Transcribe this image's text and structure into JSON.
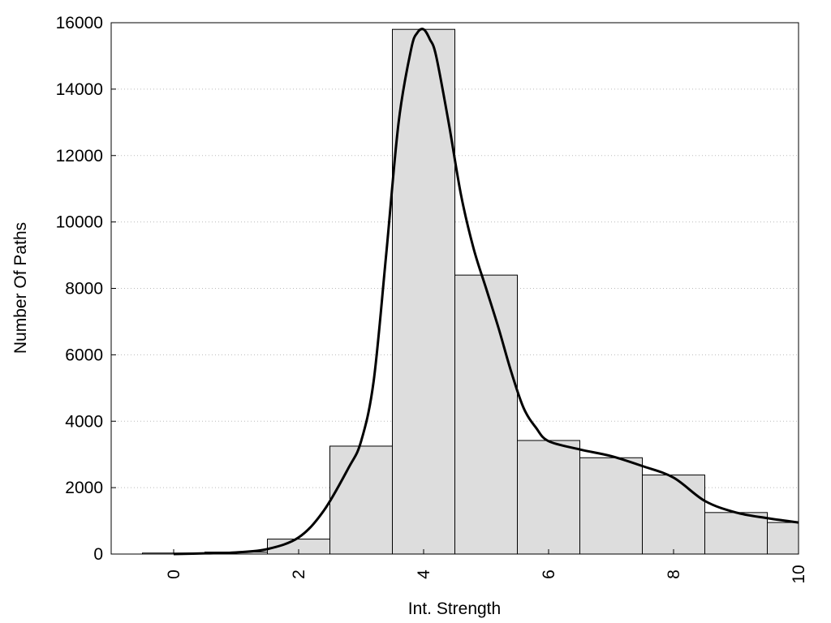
{
  "chart_data": {
    "type": "bar",
    "xlabel": "Int. Strength",
    "ylabel": "Number Of Paths",
    "xlim": [
      -1,
      10
    ],
    "ylim": [
      0,
      16000
    ],
    "x_ticks": [
      0,
      2,
      4,
      6,
      8,
      10
    ],
    "y_ticks": [
      0,
      2000,
      4000,
      6000,
      8000,
      10000,
      12000,
      14000,
      16000
    ],
    "grid": "horizontal-dotted",
    "bin_width": 1,
    "bars": {
      "x": [
        0,
        1,
        2,
        3,
        4,
        5,
        6,
        7,
        8,
        9,
        10
      ],
      "values": [
        30,
        60,
        450,
        3250,
        15800,
        8400,
        3420,
        2900,
        2380,
        1250,
        950
      ]
    },
    "curve": {
      "x": [
        0,
        0.5,
        1,
        1.5,
        2,
        2.4,
        2.8,
        3,
        3.2,
        3.4,
        3.6,
        3.8,
        3.9,
        4,
        4.1,
        4.2,
        4.4,
        4.6,
        4.8,
        5,
        5.2,
        5.4,
        5.6,
        5.8,
        6,
        6.5,
        7,
        7.5,
        8,
        8.5,
        9,
        9.5,
        10
      ],
      "y": [
        0,
        20,
        50,
        150,
        500,
        1300,
        2600,
        3400,
        5200,
        9000,
        13000,
        15200,
        15700,
        15800,
        15500,
        15000,
        13000,
        10800,
        9200,
        8000,
        6800,
        5500,
        4400,
        3800,
        3400,
        3150,
        2950,
        2650,
        2300,
        1600,
        1250,
        1080,
        950
      ]
    },
    "colors": {
      "bar_fill": "#dddddd",
      "bar_stroke": "#000000",
      "curve": "#000000",
      "grid": "#bbbbbb"
    }
  }
}
